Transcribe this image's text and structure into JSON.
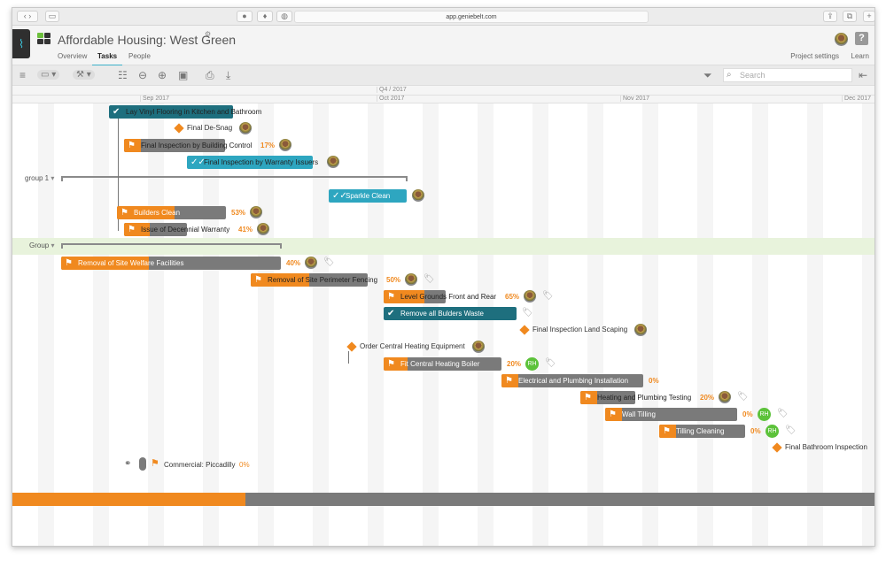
{
  "browser": {
    "url": "app.geniebelt.com"
  },
  "header": {
    "title": "Affordable Housing: West Green",
    "tabs": [
      "Overview",
      "Tasks",
      "People"
    ],
    "active_tab": "Tasks",
    "project_settings": "Project settings",
    "learn": "Learn"
  },
  "toolbar": {
    "search_placeholder": "Search"
  },
  "timeline": {
    "quarter": "Q4 / 2017",
    "months": [
      "Sep 2017",
      "Oct 2017",
      "Nov 2017",
      "Dec 2017"
    ]
  },
  "groups": [
    {
      "label": "group 1"
    },
    {
      "label": "Group"
    }
  ],
  "tasks": [
    {
      "label": "Lay Vinyl Flooring in Kitchen and Bathroom",
      "type": "done",
      "color": "#1e6f7e"
    },
    {
      "label": "Final De-Snag",
      "type": "milestone",
      "avatar": true
    },
    {
      "label": "Final Inspection by Building Control",
      "type": "task",
      "progress": 17,
      "percent": "17%",
      "avatar": true
    },
    {
      "label": "Final Inspection by Warranty Issuers",
      "type": "review",
      "color": "#2ea6c0",
      "avatar": true
    },
    {
      "label": "Sparkle Clean",
      "type": "review",
      "color": "#2ea6c0",
      "avatar": true
    },
    {
      "label": "Builders Clean",
      "type": "task",
      "progress": 53,
      "percent": "53%",
      "avatar": true
    },
    {
      "label": "Issue of Decennial Warranty",
      "type": "task",
      "progress": 41,
      "percent": "41%",
      "avatar": true
    },
    {
      "label": "Removal of Site Welfare Facilities",
      "type": "task",
      "progress": 40,
      "percent": "40%",
      "avatar": true,
      "tag": true
    },
    {
      "label": "Removal of Site Perimeter Fencing",
      "type": "task",
      "progress": 50,
      "percent": "50%",
      "avatar": true,
      "tag": true
    },
    {
      "label": "Level Grounds Front and Rear",
      "type": "task",
      "progress": 65,
      "percent": "65%",
      "avatar": true,
      "tag": true
    },
    {
      "label": "Remove all Bulders Waste",
      "type": "done",
      "color": "#1e6f7e",
      "tag": true
    },
    {
      "label": "Final Inspection Land Scaping",
      "type": "milestone",
      "avatar": true
    },
    {
      "label": "Order Central Heating Equipment",
      "type": "milestone",
      "avatar": true
    },
    {
      "label": "Fit Central Heating Boiler",
      "type": "task",
      "progress": 20,
      "percent": "20%",
      "initials": "RH",
      "tag": true
    },
    {
      "label": "Electrical and Plumbing Installation",
      "type": "task",
      "progress": 0,
      "percent": "0%"
    },
    {
      "label": "Heating and Plumbing Testing",
      "type": "task",
      "progress": 20,
      "percent": "20%",
      "avatar": true,
      "tag": true
    },
    {
      "label": "Wall Tilling",
      "type": "task",
      "progress": 0,
      "percent": "0%",
      "initials": "RH",
      "tag": true
    },
    {
      "label": "Tilling Cleaning",
      "type": "task",
      "progress": 0,
      "percent": "0%",
      "initials": "RH",
      "tag": true
    },
    {
      "label": "Final Bathroom Inspection",
      "type": "milestone"
    }
  ],
  "project": {
    "label": "Commercial: Piccadilly",
    "percent": "0%",
    "progress": 0
  },
  "overall_progress": 27,
  "colors": {
    "accent": "#f0891f",
    "grey": "#7a7a7a",
    "teal": "#1e6f7e",
    "light_teal": "#2ea6c0",
    "group_band": "#e8f3dc"
  }
}
